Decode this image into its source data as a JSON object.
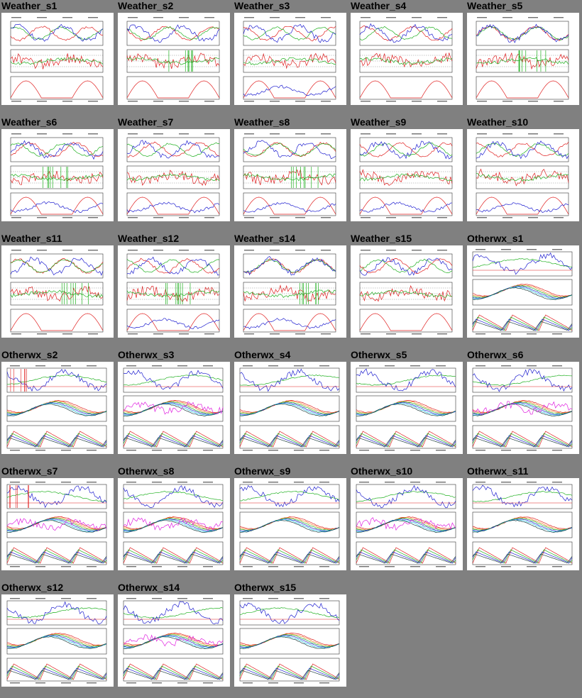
{
  "page": {
    "background": "#808080"
  },
  "thumbnails": [
    {
      "label": "Weather_s1",
      "kind": "weather",
      "variant": 1
    },
    {
      "label": "Weather_s2",
      "kind": "weather",
      "variant": 2
    },
    {
      "label": "Weather_s3",
      "kind": "weather",
      "variant": 3
    },
    {
      "label": "Weather_s4",
      "kind": "weather",
      "variant": 4
    },
    {
      "label": "Weather_s5",
      "kind": "weather",
      "variant": 5
    },
    {
      "label": "Weather_s6",
      "kind": "weather",
      "variant": 6
    },
    {
      "label": "Weather_s7",
      "kind": "weather",
      "variant": 7
    },
    {
      "label": "Weather_s8",
      "kind": "weather",
      "variant": 8
    },
    {
      "label": "Weather_s9",
      "kind": "weather",
      "variant": 9
    },
    {
      "label": "Weather_s10",
      "kind": "weather",
      "variant": 10
    },
    {
      "label": "Weather_s11",
      "kind": "weather",
      "variant": 11
    },
    {
      "label": "Weather_s12",
      "kind": "weather",
      "variant": 12
    },
    {
      "label": "Weather_s14",
      "kind": "weather",
      "variant": 14
    },
    {
      "label": "Weather_s15",
      "kind": "weather",
      "variant": 15
    },
    {
      "label": "Otherwx_s1",
      "kind": "otherwx",
      "variant": 1
    },
    {
      "label": "Otherwx_s2",
      "kind": "otherwx",
      "variant": 2
    },
    {
      "label": "Otherwx_s3",
      "kind": "otherwx",
      "variant": 3
    },
    {
      "label": "Otherwx_s4",
      "kind": "otherwx",
      "variant": 4
    },
    {
      "label": "Otherwx_s5",
      "kind": "otherwx",
      "variant": 5
    },
    {
      "label": "Otherwx_s6",
      "kind": "otherwx",
      "variant": 6
    },
    {
      "label": "Otherwx_s7",
      "kind": "otherwx",
      "variant": 7
    },
    {
      "label": "Otherwx_s8",
      "kind": "otherwx",
      "variant": 8
    },
    {
      "label": "Otherwx_s9",
      "kind": "otherwx",
      "variant": 9
    },
    {
      "label": "Otherwx_s10",
      "kind": "otherwx",
      "variant": 10
    },
    {
      "label": "Otherwx_s11",
      "kind": "otherwx",
      "variant": 11
    },
    {
      "label": "Otherwx_s12",
      "kind": "otherwx",
      "variant": 12
    },
    {
      "label": "Otherwx_s14",
      "kind": "otherwx",
      "variant": 14
    },
    {
      "label": "Otherwx_s15",
      "kind": "otherwx",
      "variant": 15
    }
  ],
  "colors": {
    "temperature": "#e02020",
    "humidity": "#20b020",
    "pressure": "#2020d0",
    "cyan": "#20c0e0",
    "magenta": "#e020e0",
    "dark": "#204040",
    "orange": "#f08020"
  }
}
